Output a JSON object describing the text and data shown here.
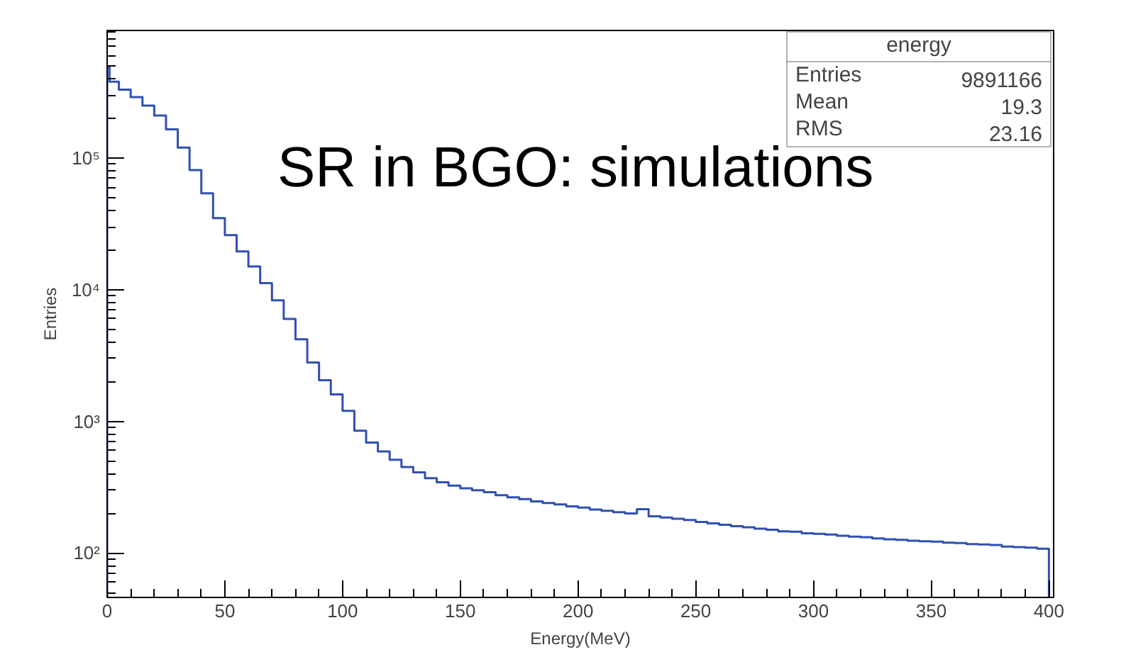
{
  "chart_data": {
    "type": "histogram",
    "xlabel": "Energy(MeV)",
    "ylabel": "Entries",
    "color": "#3050b0",
    "log": true,
    "grid": false,
    "bins": [
      0,
      1,
      5,
      10,
      15,
      20,
      25,
      30,
      35,
      40,
      45,
      50,
      55,
      60,
      65,
      70,
      75,
      80,
      85,
      90,
      95,
      100,
      105,
      110,
      115,
      120,
      125,
      130,
      135,
      140,
      145,
      150,
      155,
      160,
      165,
      170,
      175,
      180,
      185,
      190,
      195,
      200,
      205,
      210,
      215,
      220,
      225,
      230,
      235,
      240,
      245,
      250,
      255,
      260,
      265,
      270,
      275,
      280,
      285,
      290,
      295,
      300,
      305,
      310,
      315,
      320,
      325,
      330,
      335,
      340,
      345,
      350,
      355,
      360,
      365,
      370,
      375,
      380,
      385,
      390,
      395,
      400
    ],
    "values": [
      490000,
      380000,
      330000,
      290000,
      250000,
      210000,
      165000,
      120000,
      81000,
      54000,
      35000,
      26000,
      19500,
      15000,
      11200,
      8300,
      6000,
      4200,
      2800,
      2050,
      1600,
      1200,
      850,
      690,
      590,
      510,
      450,
      410,
      370,
      345,
      325,
      310,
      300,
      290,
      275,
      265,
      257,
      247,
      240,
      234,
      226,
      221,
      214,
      209,
      204,
      200,
      215,
      190,
      186,
      182,
      178,
      172,
      168,
      164,
      160,
      157,
      153,
      150,
      146,
      145,
      141,
      140,
      138,
      135,
      133,
      132,
      129,
      127,
      126,
      124,
      123,
      122,
      120,
      119,
      117,
      116,
      115,
      112,
      111,
      110,
      108
    ],
    "xlim": [
      0,
      402
    ],
    "xticks": [
      0,
      50,
      100,
      150,
      200,
      250,
      300,
      350,
      400
    ],
    "ylim": [
      46,
      930000
    ],
    "yticks": [
      {
        "value": 100,
        "label": "10²"
      },
      {
        "value": 1000,
        "label": "10³"
      },
      {
        "value": 10000,
        "label": "10⁴"
      },
      {
        "value": 100000,
        "label": "10⁵"
      }
    ],
    "annotations": [
      "SR  in  BGO: simulations",
      "energy",
      "Entries",
      "9891166",
      "Mean",
      "19.3",
      "RMS",
      "23.16"
    ]
  }
}
